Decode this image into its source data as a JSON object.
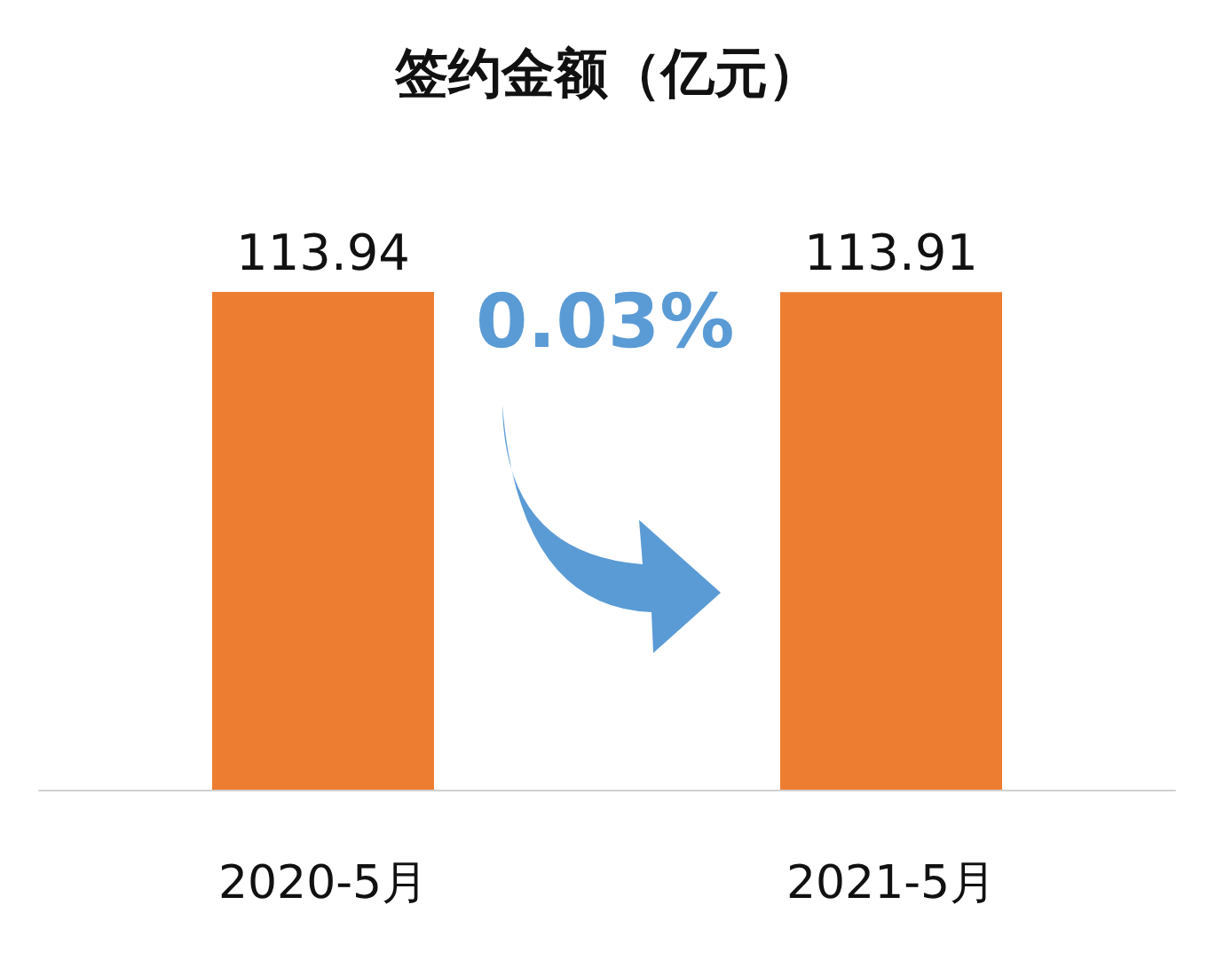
{
  "chart_data": {
    "type": "bar",
    "title": "签约金额（亿元）",
    "categories": [
      "2020-5月",
      "2021-5月"
    ],
    "series": [
      {
        "color": "#ed7d31",
        "values": [
          113.94,
          113.91
        ]
      }
    ],
    "data_labels": true,
    "annotations": [
      "0.03%"
    ]
  }
}
